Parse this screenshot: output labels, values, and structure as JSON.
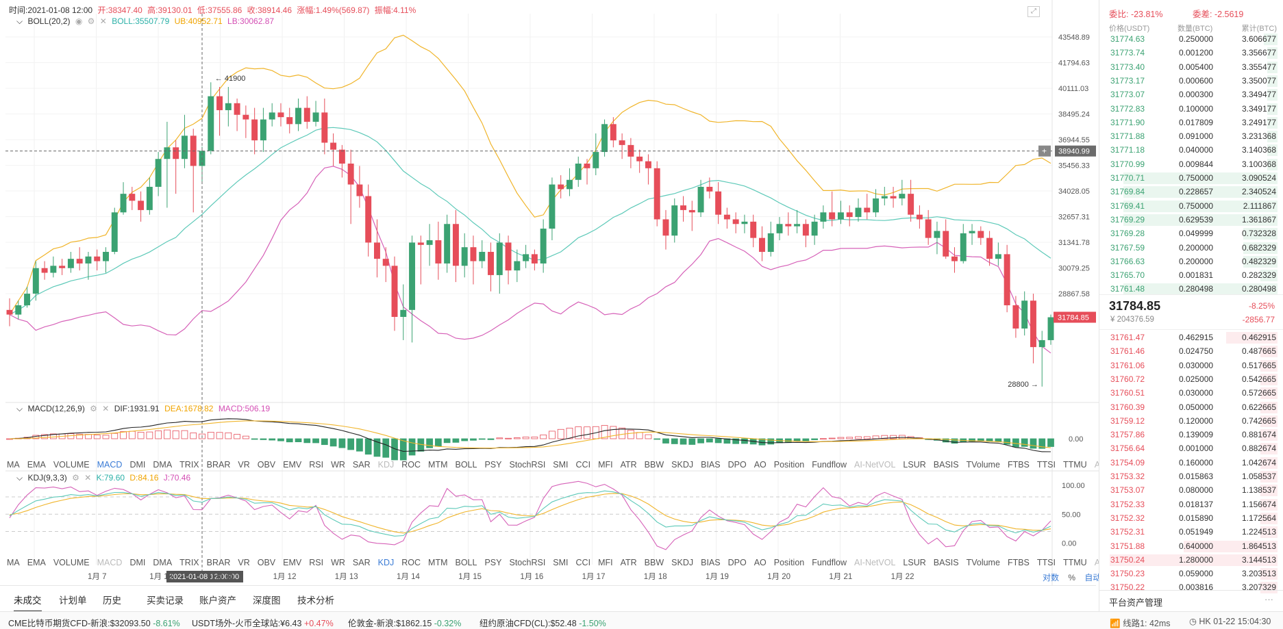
{
  "infobar": {
    "time": "时间:2021-01-08 12:00",
    "open": "开:38347.40",
    "high": "高:39130.01",
    "low": "低:37555.86",
    "close": "收:38914.46",
    "change": "涨幅:1.49%(569.87)",
    "amplitude": "振幅:4.11%"
  },
  "boll_head": {
    "name": "BOLL(20,2)",
    "boll": "BOLL:35507.79",
    "ub": "UB:40952.71",
    "lb": "LB:30062.87"
  },
  "macd_head": {
    "name": "MACD(12,26,9)",
    "dif": "DIF:1931.91",
    "dea": "DEA:1678.82",
    "macd": "MACD:506.19"
  },
  "kdj_head": {
    "name": "KDJ(9,3,3)",
    "k": "K:79.60",
    "d": "D:84.16",
    "j": "J:70.46"
  },
  "indicators": [
    "MA",
    "EMA",
    "VOLUME",
    "MACD",
    "DMI",
    "DMA",
    "TRIX",
    "BRAR",
    "VR",
    "OBV",
    "EMV",
    "RSI",
    "WR",
    "SAR",
    "KDJ",
    "ROC",
    "MTM",
    "BOLL",
    "PSY",
    "StochRSI",
    "SMI",
    "CCI",
    "MFI",
    "ATR",
    "BBW",
    "SKDJ",
    "BIAS",
    "DPO",
    "AO",
    "Position",
    "Fundflow",
    "AI-NetVOL",
    "LSUR",
    "BASIS",
    "TVolume",
    "FTBS",
    "TTSI",
    "TTMU",
    "AI-BSI"
  ],
  "price_axis": [
    "43548.89",
    "41794.63",
    "40111.03",
    "38495.24",
    "36944.55",
    "35456.33",
    "34028.05",
    "32657.31",
    "31341.78",
    "30079.25",
    "28867.58"
  ],
  "macd_axis": [
    "0.00"
  ],
  "kdj_axis": [
    "100.00",
    "50.00",
    "0.00"
  ],
  "x_axis": [
    "1月 7",
    "1月 10",
    "1月 11",
    "1月 12",
    "1月 13",
    "1月 14",
    "1月 15",
    "1月 16",
    "1月 17",
    "1月 18",
    "1月 19",
    "1月 20",
    "1月 21",
    "1月 22"
  ],
  "crosshair": {
    "date": "2021-01-08 12:00:00",
    "price": "38940.99"
  },
  "last_price_tag": "31784.85",
  "annotations": {
    "high": "← 41900",
    "low": "28800 →"
  },
  "axis_controls": {
    "log": "对数",
    "pct": "%",
    "auto": "自动"
  },
  "colors": {
    "up": "#3ba272",
    "down": "#e64d59",
    "ub": "#f0b429",
    "mid": "#5cc9b8",
    "lb": "#d661b8"
  },
  "chart_data": {
    "type": "candlestick",
    "series_hint": "BTC/USDT 4h candles with BOLL, MACD, KDJ",
    "candles": [
      [
        32100,
        31900,
        32600,
        31400
      ],
      [
        31900,
        32300,
        32500,
        31700
      ],
      [
        32300,
        32800,
        33100,
        32200
      ],
      [
        32800,
        33900,
        34200,
        32500
      ],
      [
        33900,
        33700,
        34200,
        33400
      ],
      [
        33700,
        34000,
        34400,
        33500
      ],
      [
        34000,
        33900,
        34300,
        33600
      ],
      [
        33900,
        34300,
        34600,
        33700
      ],
      [
        34300,
        34100,
        34800,
        33800
      ],
      [
        34100,
        34400,
        34600,
        33400
      ],
      [
        34400,
        34200,
        34700,
        33800
      ],
      [
        34200,
        34600,
        34800,
        33700
      ],
      [
        34600,
        36300,
        36500,
        34500
      ],
      [
        36300,
        37100,
        37600,
        36200
      ],
      [
        37100,
        36800,
        37400,
        36400
      ],
      [
        36800,
        36400,
        37200,
        35900
      ],
      [
        36400,
        37400,
        37800,
        36200
      ],
      [
        37400,
        38600,
        38900,
        37000
      ],
      [
        38600,
        39100,
        40200,
        36500
      ],
      [
        39100,
        38600,
        39400,
        37100
      ],
      [
        38600,
        39600,
        40500,
        38200
      ],
      [
        39600,
        38300,
        39900,
        36300
      ],
      [
        38300,
        38950,
        39130,
        37556
      ],
      [
        38950,
        41300,
        41900,
        38800
      ],
      [
        41300,
        40700,
        41700,
        39600
      ],
      [
        40700,
        41000,
        41700,
        40000
      ],
      [
        41000,
        40500,
        41200,
        39800
      ],
      [
        40500,
        40300,
        40900,
        39500
      ],
      [
        40300,
        39400,
        40800,
        38800
      ],
      [
        39400,
        40300,
        40800,
        38900
      ],
      [
        40300,
        40600,
        41000,
        40000
      ],
      [
        40600,
        40400,
        41000,
        40000
      ],
      [
        40400,
        40100,
        40800,
        39700
      ],
      [
        40100,
        40800,
        41200,
        39800
      ],
      [
        40800,
        40200,
        41300,
        39900
      ],
      [
        40200,
        40600,
        41100,
        40000
      ],
      [
        40600,
        39300,
        41200,
        38800
      ],
      [
        39300,
        39000,
        39700,
        38300
      ],
      [
        39000,
        38400,
        39200,
        37800
      ],
      [
        38400,
        37500,
        39000,
        35800
      ],
      [
        37500,
        37000,
        38300,
        36500
      ],
      [
        37000,
        35000,
        37500,
        34400
      ],
      [
        35000,
        34300,
        36000,
        33500
      ],
      [
        34300,
        34000,
        34800,
        33300
      ],
      [
        34000,
        31800,
        34400,
        31200
      ],
      [
        31800,
        32100,
        33200,
        30800
      ],
      [
        32100,
        35000,
        35300,
        30700
      ],
      [
        35000,
        34900,
        35300,
        33200
      ],
      [
        34900,
        35100,
        35800,
        34000
      ],
      [
        35100,
        34100,
        35900,
        33400
      ],
      [
        34100,
        35800,
        36200,
        33700
      ],
      [
        35800,
        34000,
        36400,
        33300
      ],
      [
        34000,
        34800,
        35400,
        33500
      ],
      [
        34800,
        34200,
        35300,
        33200
      ],
      [
        34200,
        34600,
        35100,
        33900
      ],
      [
        34600,
        33600,
        35000,
        32900
      ],
      [
        33600,
        35000,
        35400,
        32800
      ],
      [
        35000,
        33800,
        35300,
        33200
      ],
      [
        33800,
        34200,
        34700,
        33300
      ],
      [
        34200,
        34500,
        34900,
        33900
      ],
      [
        34500,
        34100,
        34700,
        33800
      ],
      [
        34100,
        35600,
        36000,
        33700
      ],
      [
        35600,
        37500,
        37800,
        35100
      ],
      [
        37500,
        37300,
        37900,
        36900
      ],
      [
        37300,
        37700,
        38200,
        37000
      ],
      [
        37700,
        38400,
        38700,
        37400
      ],
      [
        38400,
        38200,
        38600,
        37500
      ],
      [
        38200,
        38900,
        39700,
        37900
      ],
      [
        38900,
        40100,
        40300,
        38700
      ],
      [
        40100,
        39400,
        40400,
        39100
      ],
      [
        39400,
        39200,
        39700,
        38600
      ],
      [
        39200,
        38700,
        39500,
        38200
      ],
      [
        38700,
        38500,
        39000,
        38000
      ],
      [
        38500,
        38200,
        38800,
        37500
      ],
      [
        38200,
        36000,
        38500,
        35700
      ],
      [
        36000,
        35300,
        36400,
        34700
      ],
      [
        35300,
        36600,
        36900,
        35000
      ],
      [
        36600,
        36400,
        37000,
        35900
      ],
      [
        36400,
        36300,
        36800,
        35500
      ],
      [
        36300,
        37400,
        37700,
        36100
      ],
      [
        37400,
        37200,
        37800,
        36900
      ],
      [
        37200,
        36200,
        37600,
        35800
      ],
      [
        36200,
        36000,
        36500,
        35600
      ],
      [
        36000,
        35800,
        36300,
        35400
      ],
      [
        35800,
        35900,
        36200,
        35400
      ],
      [
        35900,
        35200,
        36200,
        34800
      ],
      [
        35200,
        34600,
        35700,
        34200
      ],
      [
        34600,
        35400,
        35900,
        34400
      ],
      [
        35400,
        35800,
        36100,
        35100
      ],
      [
        35800,
        35700,
        36300,
        35300
      ],
      [
        35700,
        35800,
        36400,
        35400
      ],
      [
        35800,
        35300,
        36000,
        34800
      ],
      [
        35300,
        35900,
        36200,
        34900
      ],
      [
        35900,
        36300,
        36600,
        35600
      ],
      [
        36300,
        36000,
        37200,
        35700
      ],
      [
        36000,
        36300,
        36800,
        35800
      ],
      [
        36300,
        36100,
        36600,
        35700
      ],
      [
        36100,
        36500,
        36900,
        35900
      ],
      [
        36500,
        36300,
        37100,
        36000
      ],
      [
        36300,
        36900,
        37300,
        36100
      ],
      [
        36900,
        37000,
        37400,
        36600
      ],
      [
        37000,
        36900,
        37400,
        36500
      ],
      [
        36900,
        37100,
        37700,
        36600
      ],
      [
        37100,
        36200,
        37700,
        35900
      ],
      [
        36200,
        36000,
        36600,
        35600
      ],
      [
        36000,
        35200,
        36400,
        34900
      ],
      [
        35200,
        35500,
        35900,
        34500
      ],
      [
        35500,
        34400,
        36000,
        34300
      ],
      [
        34400,
        34200,
        34800,
        33700
      ],
      [
        34200,
        35400,
        35800,
        34100
      ],
      [
        35400,
        35500,
        35800,
        34900
      ],
      [
        35500,
        35200,
        35700,
        34900
      ],
      [
        35200,
        34300,
        35500,
        34000
      ],
      [
        34300,
        34500,
        35000,
        34000
      ],
      [
        34500,
        32300,
        34900,
        32000
      ],
      [
        32300,
        31300,
        32700,
        30900
      ],
      [
        31300,
        32500,
        32900,
        31000
      ],
      [
        32500,
        30500,
        32800,
        29800
      ],
      [
        30500,
        30800,
        31200,
        28800
      ],
      [
        30800,
        31785,
        31900,
        30600
      ]
    ],
    "high_marker": 41900,
    "low_marker": 28800,
    "ylim": [
      28500,
      44500
    ],
    "macd_ylim": [
      -1600,
      2400
    ],
    "kdj_ylim": [
      -15,
      105
    ]
  },
  "orderbook": {
    "commission_ratio": "委比: -23.81%",
    "commission_diff": "委差: -2.5619",
    "hdr_price": "价格(USDT)",
    "hdr_qty": "数量(BTC)",
    "hdr_total": "累计(BTC)",
    "asks": [
      {
        "p": "31774.63",
        "q": "0.250000",
        "t": "3.606677",
        "f": 0.08
      },
      {
        "p": "31773.74",
        "q": "0.001200",
        "t": "3.356677",
        "f": 0.06
      },
      {
        "p": "31773.40",
        "q": "0.005400",
        "t": "3.355477",
        "f": 0.06
      },
      {
        "p": "31773.17",
        "q": "0.000600",
        "t": "3.350077",
        "f": 0.06
      },
      {
        "p": "31773.07",
        "q": "0.000300",
        "t": "3.349477",
        "f": 0.06
      },
      {
        "p": "31772.83",
        "q": "0.100000",
        "t": "3.349177",
        "f": 0.06
      },
      {
        "p": "31771.90",
        "q": "0.017809",
        "t": "3.249177",
        "f": 0.06
      },
      {
        "p": "31771.88",
        "q": "0.091000",
        "t": "3.231368",
        "f": 0.06
      },
      {
        "p": "31771.18",
        "q": "0.040000",
        "t": "3.140368",
        "f": 0.06
      },
      {
        "p": "31770.99",
        "q": "0.009844",
        "t": "3.100368",
        "f": 0.06
      },
      {
        "p": "31770.71",
        "q": "0.750000",
        "t": "3.090524",
        "f": 0.9
      },
      {
        "p": "31769.84",
        "q": "0.228657",
        "t": "2.340524",
        "f": 0.9
      },
      {
        "p": "31769.41",
        "q": "0.750000",
        "t": "2.111867",
        "f": 0.9
      },
      {
        "p": "31769.29",
        "q": "0.629539",
        "t": "1.361867",
        "f": 0.9
      },
      {
        "p": "31769.28",
        "q": "0.049999",
        "t": "0.732328",
        "f": 0.2
      },
      {
        "p": "31767.59",
        "q": "0.200000",
        "t": "0.682329",
        "f": 0.2
      },
      {
        "p": "31766.63",
        "q": "0.200000",
        "t": "0.482329",
        "f": 0.2
      },
      {
        "p": "31765.70",
        "q": "0.001831",
        "t": "0.282329",
        "f": 0.1
      },
      {
        "p": "31761.48",
        "q": "0.280498",
        "t": "0.280498",
        "f": 0.9
      }
    ],
    "last_price": "31784.85",
    "last_cny": "¥ 204376.59",
    "change_pct": "-8.25%",
    "change_abs": "-2856.77",
    "bids": [
      {
        "p": "31761.47",
        "q": "0.462915",
        "t": "0.462915",
        "f": 0.3
      },
      {
        "p": "31761.46",
        "q": "0.024750",
        "t": "0.487665",
        "f": 0.1
      },
      {
        "p": "31761.06",
        "q": "0.030000",
        "t": "0.517665",
        "f": 0.1
      },
      {
        "p": "31760.72",
        "q": "0.025000",
        "t": "0.542665",
        "f": 0.1
      },
      {
        "p": "31760.51",
        "q": "0.030000",
        "t": "0.572665",
        "f": 0.1
      },
      {
        "p": "31760.39",
        "q": "0.050000",
        "t": "0.622665",
        "f": 0.1
      },
      {
        "p": "31759.12",
        "q": "0.120000",
        "t": "0.742665",
        "f": 0.1
      },
      {
        "p": "31757.86",
        "q": "0.139009",
        "t": "0.881674",
        "f": 0.1
      },
      {
        "p": "31756.64",
        "q": "0.001000",
        "t": "0.882674",
        "f": 0.1
      },
      {
        "p": "31754.09",
        "q": "0.160000",
        "t": "1.042674",
        "f": 0.1
      },
      {
        "p": "31753.32",
        "q": "0.015863",
        "t": "1.058537",
        "f": 0.1
      },
      {
        "p": "31753.07",
        "q": "0.080000",
        "t": "1.138537",
        "f": 0.1
      },
      {
        "p": "31752.33",
        "q": "0.018137",
        "t": "1.156674",
        "f": 0.1
      },
      {
        "p": "31752.32",
        "q": "0.015890",
        "t": "1.172564",
        "f": 0.1
      },
      {
        "p": "31752.31",
        "q": "0.051949",
        "t": "1.224513",
        "f": 0.1
      },
      {
        "p": "31751.88",
        "q": "0.640000",
        "t": "1.864513",
        "f": 0.55
      },
      {
        "p": "31750.24",
        "q": "1.280000",
        "t": "3.144513",
        "f": 0.98
      },
      {
        "p": "31750.23",
        "q": "0.059000",
        "t": "3.203513",
        "f": 0.1
      },
      {
        "p": "31750.22",
        "q": "0.003816",
        "t": "3.207329",
        "f": 0.1
      }
    ],
    "footer": "平台资产管理"
  },
  "tabs": [
    "未成交",
    "计划单",
    "历史",
    "买卖记录",
    "账户资产",
    "深度图",
    "技术分析"
  ],
  "ticker": [
    {
      "name": "CME比特币期货CFD-新浪:",
      "value": "$32093.50",
      "chg": "-8.61%",
      "dir": "down"
    },
    {
      "name": "USDT场外-火币全球站:",
      "value": "¥6.43",
      "chg": "+0.47%",
      "dir": "up"
    },
    {
      "name": "伦敦金-新浪:",
      "value": "$1862.15",
      "chg": "-0.32%",
      "dir": "down"
    },
    {
      "name": "纽约原油CFD(CL):",
      "value": "$52.48",
      "chg": "-1.50%",
      "dir": "down"
    }
  ],
  "status": {
    "line": "线路1: 42ms",
    "clock": "HK 01-22 15:04:30"
  }
}
